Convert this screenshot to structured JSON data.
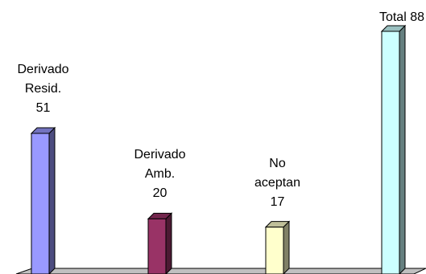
{
  "chart_data": {
    "type": "bar",
    "title": "",
    "xlabel": "",
    "ylabel": "",
    "ylim": [
      0,
      88
    ],
    "grid": false,
    "legend": "none",
    "categories": [
      "Derivado Resid.",
      "Derivado Amb.",
      "No aceptan",
      "Total"
    ],
    "values": [
      51,
      20,
      17,
      88
    ],
    "data_labels": [
      [
        "Derivado",
        "Resid.",
        "51"
      ],
      [
        "Derivado",
        "Amb.",
        "20"
      ],
      [
        "No",
        "aceptan",
        "17"
      ],
      [
        "Total 88"
      ]
    ],
    "colors": {
      "front": [
        "#9999ff",
        "#993366",
        "#ffffcc",
        "#ccffff"
      ],
      "side": [
        "#4d4d80",
        "#4d1a33",
        "#808066",
        "#668080"
      ],
      "top": [
        "#7373bf",
        "#73264d",
        "#bfbf99",
        "#99bfbf"
      ],
      "floor": "#c0c0c0"
    }
  }
}
